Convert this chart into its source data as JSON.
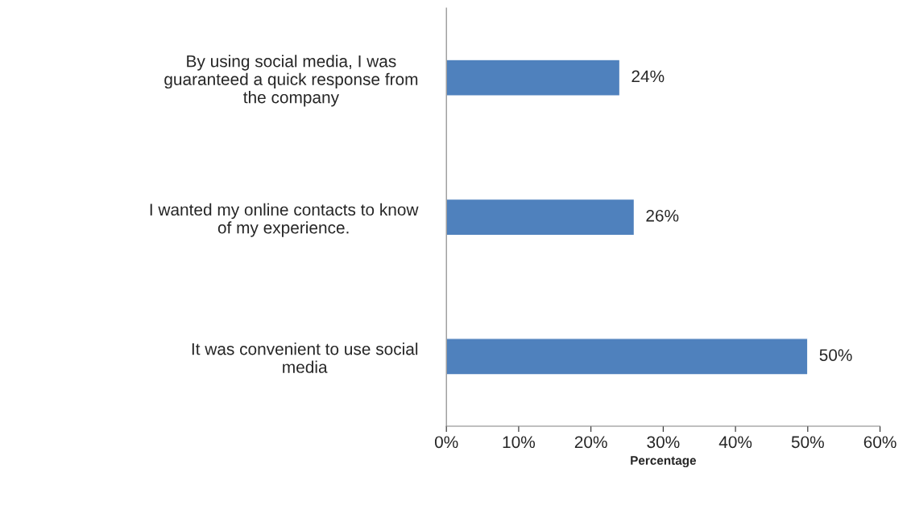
{
  "chart_data": {
    "type": "bar",
    "orientation": "horizontal",
    "categories": [
      "By using social media, I was\nguaranteed a quick response from\nthe company",
      "I wanted my online contacts to know\nof my experience.",
      "It was convenient to use social\nmedia"
    ],
    "values": [
      24,
      26,
      50
    ],
    "color": "#4f81bd",
    "value_labels": [
      "24%",
      "26%",
      "50%"
    ],
    "xlabel": "Percentage",
    "xlim": [
      0,
      60
    ],
    "xticks": [
      {
        "value": 0,
        "label": "0%"
      },
      {
        "value": 10,
        "label": "10%"
      },
      {
        "value": 20,
        "label": "20%"
      },
      {
        "value": 30,
        "label": "30%"
      },
      {
        "value": 40,
        "label": "40%"
      },
      {
        "value": 50,
        "label": "50%"
      },
      {
        "value": 60,
        "label": "60%"
      }
    ],
    "grid": false,
    "legend": false
  }
}
